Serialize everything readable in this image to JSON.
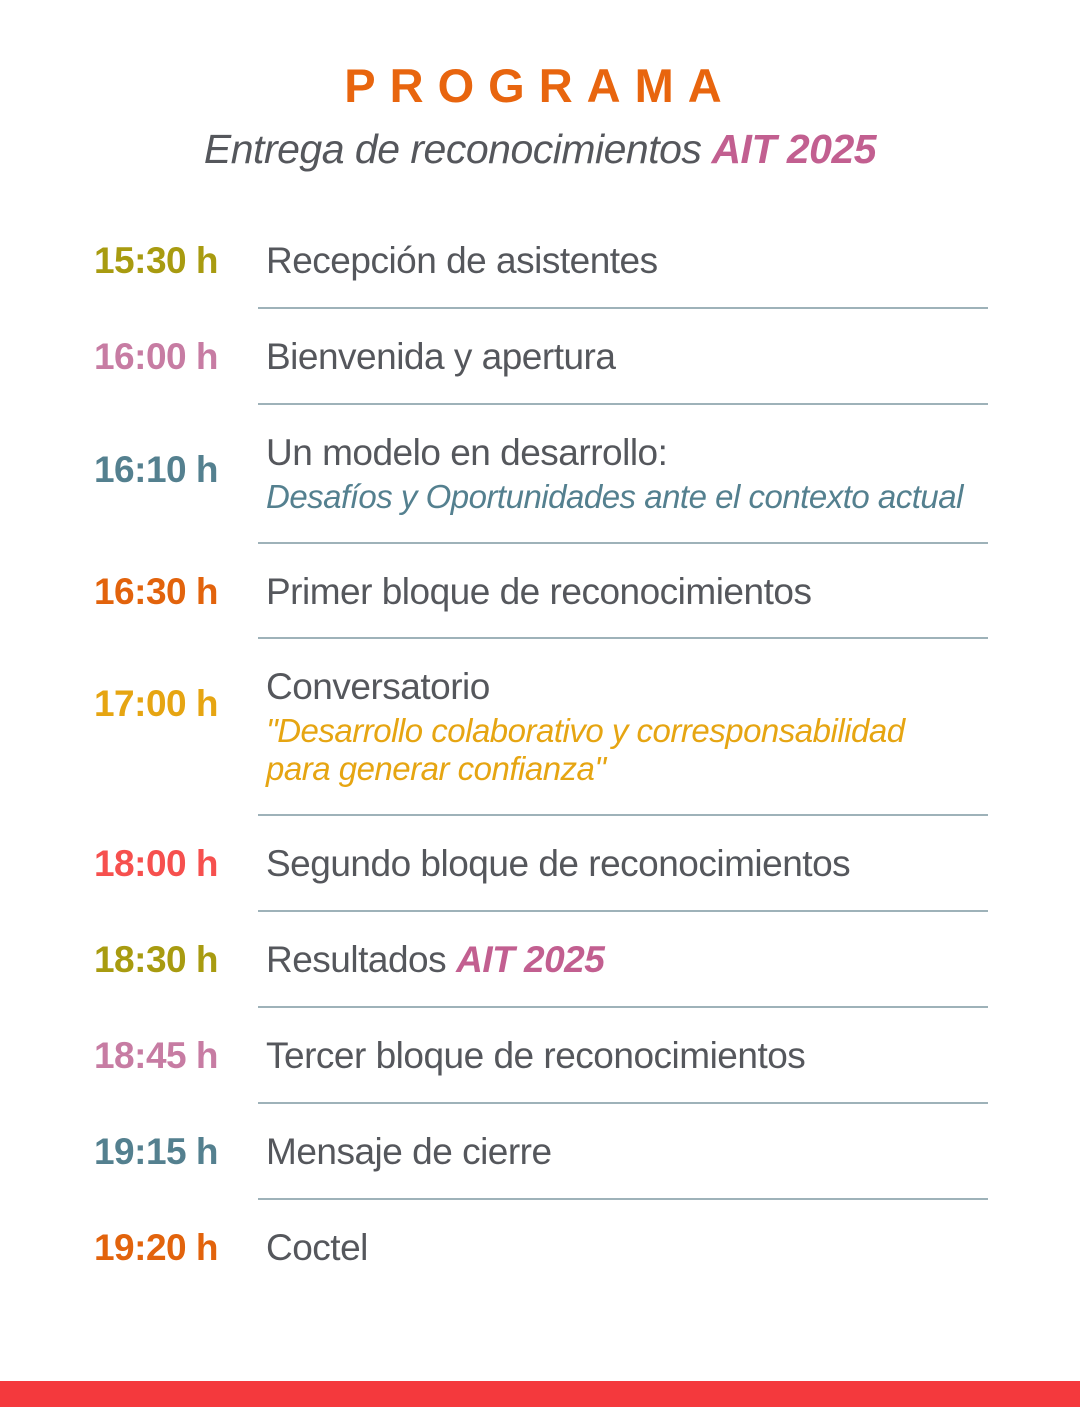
{
  "header": {
    "title": "PROGRAMA",
    "subtitle": "Entrega de reconocimientos",
    "subtitle_highlight": "AIT 2025"
  },
  "schedule": {
    "items": [
      {
        "time": "15:30 h",
        "title": "Recepción de asistentes",
        "time_color": "#A89B10"
      },
      {
        "time": "16:00 h",
        "title": "Bienvenida y apertura",
        "time_color": "#C77CA3"
      },
      {
        "time": "16:10 h",
        "title": "Un modelo en desarrollo:",
        "subtitle": "Desafíos y Oportunidades ante el contexto actual",
        "time_color": "#54808F",
        "subtitle_color": "#54808F"
      },
      {
        "time": "16:30 h",
        "title": "Primer bloque de reconocimientos",
        "time_color": "#E2630C"
      },
      {
        "time": "17:00 h",
        "title": "Conversatorio",
        "subtitle": "\"Desarrollo colaborativo y corresponsabilidad para generar confianza\"",
        "time_color": "#E6A512",
        "subtitle_color": "#E6A512"
      },
      {
        "time": "18:00 h",
        "title": "Segundo bloque de reconocimientos",
        "time_color": "#F6504E"
      },
      {
        "time": "18:30 h",
        "title": "Resultados",
        "title_highlight": "AIT 2025",
        "time_color": "#A89B10",
        "highlight_color": "#C25F90"
      },
      {
        "time": "18:45 h",
        "title": "Tercer bloque de reconocimientos",
        "time_color": "#C77CA3"
      },
      {
        "time": "19:15 h",
        "title": "Mensaje de cierre",
        "time_color": "#54808F"
      },
      {
        "time": "19:20 h",
        "title": "Coctel",
        "time_color": "#E2630C"
      }
    ]
  },
  "colors": {
    "title_orange": "#E8650E",
    "text_gray": "#55575C",
    "divider": "#9EB2B9",
    "accent_pink": "#C25F90",
    "footer_bar_red": "#F4393D"
  },
  "footer": {
    "bar_color": "#F4393D"
  }
}
